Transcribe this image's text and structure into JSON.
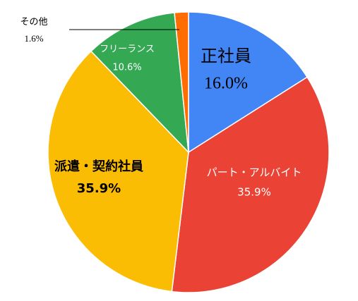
{
  "chart_data": {
    "type": "pie",
    "categories": [
      "正社員",
      "パート・アルバイト",
      "派遣・契約社員",
      "フリーランス",
      "その他"
    ],
    "values": [
      16.0,
      35.9,
      35.9,
      10.6,
      1.6
    ],
    "value_labels": [
      "16.0%",
      "35.9%",
      "35.9%",
      "10.6%",
      "1.6%"
    ],
    "colors": [
      "#4285f4",
      "#ea4335",
      "#fbbc04",
      "#34a853",
      "#ff6d01"
    ]
  }
}
